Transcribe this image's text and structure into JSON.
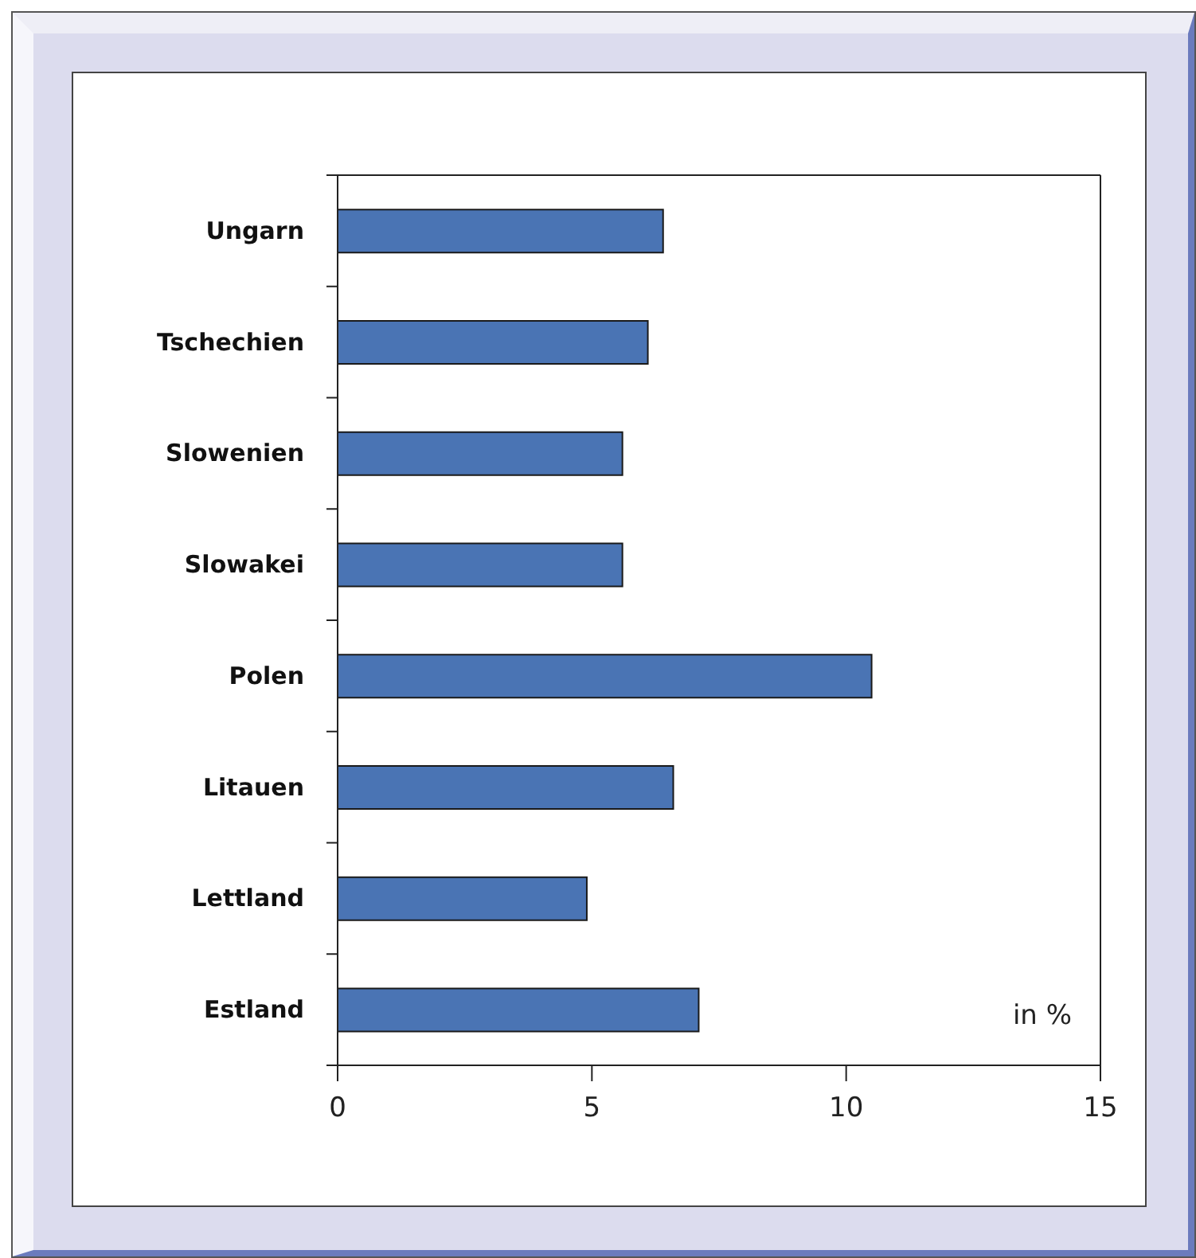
{
  "chart_data": {
    "type": "bar",
    "orientation": "horizontal",
    "categories": [
      "Ungarn",
      "Tschechien",
      "Slowenien",
      "Slowakei",
      "Polen",
      "Litauen",
      "Lettland",
      "Estland"
    ],
    "values": [
      6.4,
      6.1,
      5.6,
      5.6,
      10.5,
      6.6,
      4.9,
      7.1
    ],
    "color": "#4a74b4",
    "xlim": [
      0,
      15
    ],
    "xticks": [
      0,
      5,
      10,
      15
    ],
    "annotations": [
      "in %"
    ]
  }
}
